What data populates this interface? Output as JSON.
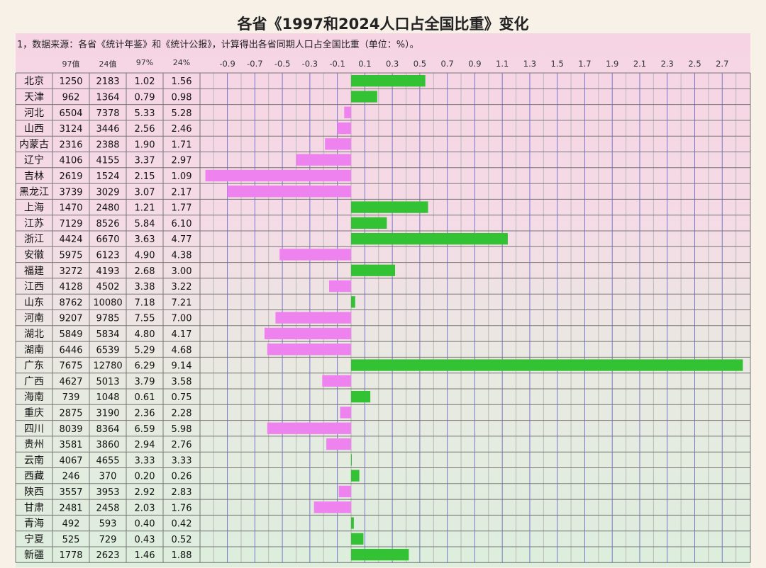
{
  "title": "各省《1997和2024人口占全国比重》变化",
  "note": "1，数据来源：各省《统计年鉴》和《统计公报》，计算得出各省同期人口占全国比重（单位：%）。",
  "columns": [
    "97值",
    "24值",
    "97%",
    "24%"
  ],
  "chart_data": {
    "type": "bar",
    "orientation": "horizontal",
    "xlim": [
      -1.0,
      2.9
    ],
    "x_ticks": [
      "-0.9",
      "-0.7",
      "-0.5",
      "-0.3",
      "-0.1",
      "0.1",
      "0.3",
      "0.5",
      "0.7",
      "0.9",
      "1.1",
      "1.3",
      "1.5",
      "1.7",
      "1.9",
      "2.1",
      "2.3",
      "2.5",
      "2.7"
    ],
    "positive_color": "#33c233",
    "negative_color": "#ee82ee",
    "rows": [
      {
        "name": "北京",
        "v97": "1250",
        "v24": "2183",
        "p97": "1.02",
        "p24": "1.56",
        "change": 0.54
      },
      {
        "name": "天津",
        "v97": "962",
        "v24": "1364",
        "p97": "0.79",
        "p24": "0.98",
        "change": 0.19
      },
      {
        "name": "河北",
        "v97": "6504",
        "v24": "7378",
        "p97": "5.33",
        "p24": "5.28",
        "change": -0.05
      },
      {
        "name": "山西",
        "v97": "3124",
        "v24": "3446",
        "p97": "2.56",
        "p24": "2.46",
        "change": -0.1
      },
      {
        "name": "内蒙古",
        "v97": "2316",
        "v24": "2388",
        "p97": "1.90",
        "p24": "1.71",
        "change": -0.19
      },
      {
        "name": "辽宁",
        "v97": "4106",
        "v24": "4155",
        "p97": "3.37",
        "p24": "2.97",
        "change": -0.4
      },
      {
        "name": "吉林",
        "v97": "2619",
        "v24": "1524",
        "p97": "2.15",
        "p24": "1.09",
        "change": -1.06
      },
      {
        "name": "黑龙江",
        "v97": "3739",
        "v24": "3029",
        "p97": "3.07",
        "p24": "2.17",
        "change": -0.9
      },
      {
        "name": "上海",
        "v97": "1470",
        "v24": "2480",
        "p97": "1.21",
        "p24": "1.77",
        "change": 0.56
      },
      {
        "name": "江苏",
        "v97": "7129",
        "v24": "8526",
        "p97": "5.84",
        "p24": "6.10",
        "change": 0.26
      },
      {
        "name": "浙江",
        "v97": "4424",
        "v24": "6670",
        "p97": "3.63",
        "p24": "4.77",
        "change": 1.14
      },
      {
        "name": "安徽",
        "v97": "5975",
        "v24": "6123",
        "p97": "4.90",
        "p24": "4.38",
        "change": -0.52
      },
      {
        "name": "福建",
        "v97": "3272",
        "v24": "4193",
        "p97": "2.68",
        "p24": "3.00",
        "change": 0.32
      },
      {
        "name": "江西",
        "v97": "4128",
        "v24": "4502",
        "p97": "3.38",
        "p24": "3.22",
        "change": -0.16
      },
      {
        "name": "山东",
        "v97": "8762",
        "v24": "10080",
        "p97": "7.18",
        "p24": "7.21",
        "change": 0.03
      },
      {
        "name": "河南",
        "v97": "9207",
        "v24": "9785",
        "p97": "7.55",
        "p24": "7.00",
        "change": -0.55
      },
      {
        "name": "湖北",
        "v97": "5849",
        "v24": "5834",
        "p97": "4.80",
        "p24": "4.17",
        "change": -0.63
      },
      {
        "name": "湖南",
        "v97": "6446",
        "v24": "6539",
        "p97": "5.29",
        "p24": "4.68",
        "change": -0.61
      },
      {
        "name": "广东",
        "v97": "7675",
        "v24": "12780",
        "p97": "6.29",
        "p24": "9.14",
        "change": 2.85
      },
      {
        "name": "广西",
        "v97": "4627",
        "v24": "5013",
        "p97": "3.79",
        "p24": "3.58",
        "change": -0.21
      },
      {
        "name": "海南",
        "v97": "739",
        "v24": "1048",
        "p97": "0.61",
        "p24": "0.75",
        "change": 0.14
      },
      {
        "name": "重庆",
        "v97": "2875",
        "v24": "3190",
        "p97": "2.36",
        "p24": "2.28",
        "change": -0.08
      },
      {
        "name": "四川",
        "v97": "8039",
        "v24": "8364",
        "p97": "6.59",
        "p24": "5.98",
        "change": -0.61
      },
      {
        "name": "贵州",
        "v97": "3581",
        "v24": "3860",
        "p97": "2.94",
        "p24": "2.76",
        "change": -0.18
      },
      {
        "name": "云南",
        "v97": "4067",
        "v24": "4655",
        "p97": "3.33",
        "p24": "3.33",
        "change": 0.0
      },
      {
        "name": "西藏",
        "v97": "246",
        "v24": "370",
        "p97": "0.20",
        "p24": "0.26",
        "change": 0.06
      },
      {
        "name": "陕西",
        "v97": "3557",
        "v24": "3953",
        "p97": "2.92",
        "p24": "2.83",
        "change": -0.09
      },
      {
        "name": "甘肃",
        "v97": "2481",
        "v24": "2458",
        "p97": "2.03",
        "p24": "1.76",
        "change": -0.27
      },
      {
        "name": "青海",
        "v97": "492",
        "v24": "593",
        "p97": "0.40",
        "p24": "0.42",
        "change": 0.02
      },
      {
        "name": "宁夏",
        "v97": "525",
        "v24": "729",
        "p97": "0.43",
        "p24": "0.52",
        "change": 0.09
      },
      {
        "name": "新疆",
        "v97": "1778",
        "v24": "2623",
        "p97": "1.46",
        "p24": "1.88",
        "change": 0.42
      }
    ]
  }
}
